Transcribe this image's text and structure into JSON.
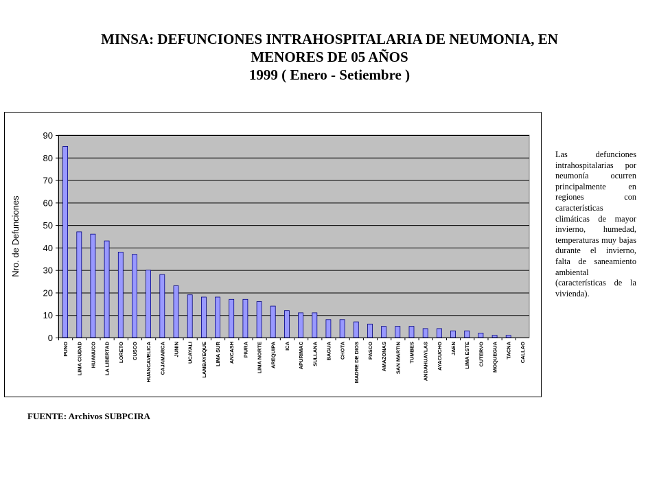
{
  "header": {
    "title_line1": "MINSA: DEFUNCIONES INTRAHOSPITALARIA DE NEUMONIA, EN",
    "title_line2": "MENORES DE 05 AÑOS",
    "title_line3": "1999 ( Enero - Setiembre )"
  },
  "note": {
    "text": "Las defunciones intrahospitalarias por neumonía ocurren principalmente en regiones con características climáticas de mayor invierno, humedad, temperaturas muy bajas durante el invierno, falta de saneamiento ambiental (características de la vivienda)."
  },
  "source": {
    "text": "FUENTE: Archivos SUBPCIRA"
  },
  "colors": {
    "bar_fill": "#9999ff",
    "bar_stroke": "#000080",
    "plot_bg": "#c0c0c0",
    "gridline": "#000000"
  },
  "chart_data": {
    "type": "bar",
    "title": "",
    "xlabel": "",
    "ylabel": "Nro. de Defunciones",
    "ylim": [
      0,
      90
    ],
    "yticks": [
      0,
      10,
      20,
      30,
      40,
      50,
      60,
      70,
      80,
      90
    ],
    "grid": true,
    "legend": "none",
    "categories": [
      "PUNO",
      "LIMA CIUDAD",
      "HUANUCO",
      "LA LIBERTAD",
      "LORETO",
      "CUSCO",
      "HUANCAVELICA",
      "CAJAMARCA",
      "JUNIN",
      "UCAYALI",
      "LAMBAYEQUE",
      "LIMA SUR",
      "ANCASH",
      "PIURA",
      "LIMA NORTE",
      "AREQUIPA",
      "ICA",
      "APURIMAC",
      "SULLANA",
      "BAGUA",
      "CHOTA",
      "MADRE DE DIOS",
      "PASCO",
      "AMAZONAS",
      "SAN MARTIN",
      "TUMBES",
      "ANDAHUAYLAS",
      "AYACUCHO",
      "JAEN",
      "LIMA ESTE",
      "CUTERVO",
      "MOQUEGUA",
      "TACNA",
      "CALLAO"
    ],
    "values": [
      85,
      47,
      46,
      43,
      38,
      37,
      30,
      28,
      23,
      19,
      18,
      18,
      17,
      17,
      16,
      14,
      12,
      11,
      11,
      8,
      8,
      7,
      6,
      5,
      5,
      5,
      4,
      4,
      3,
      3,
      2,
      1,
      1,
      0
    ]
  }
}
